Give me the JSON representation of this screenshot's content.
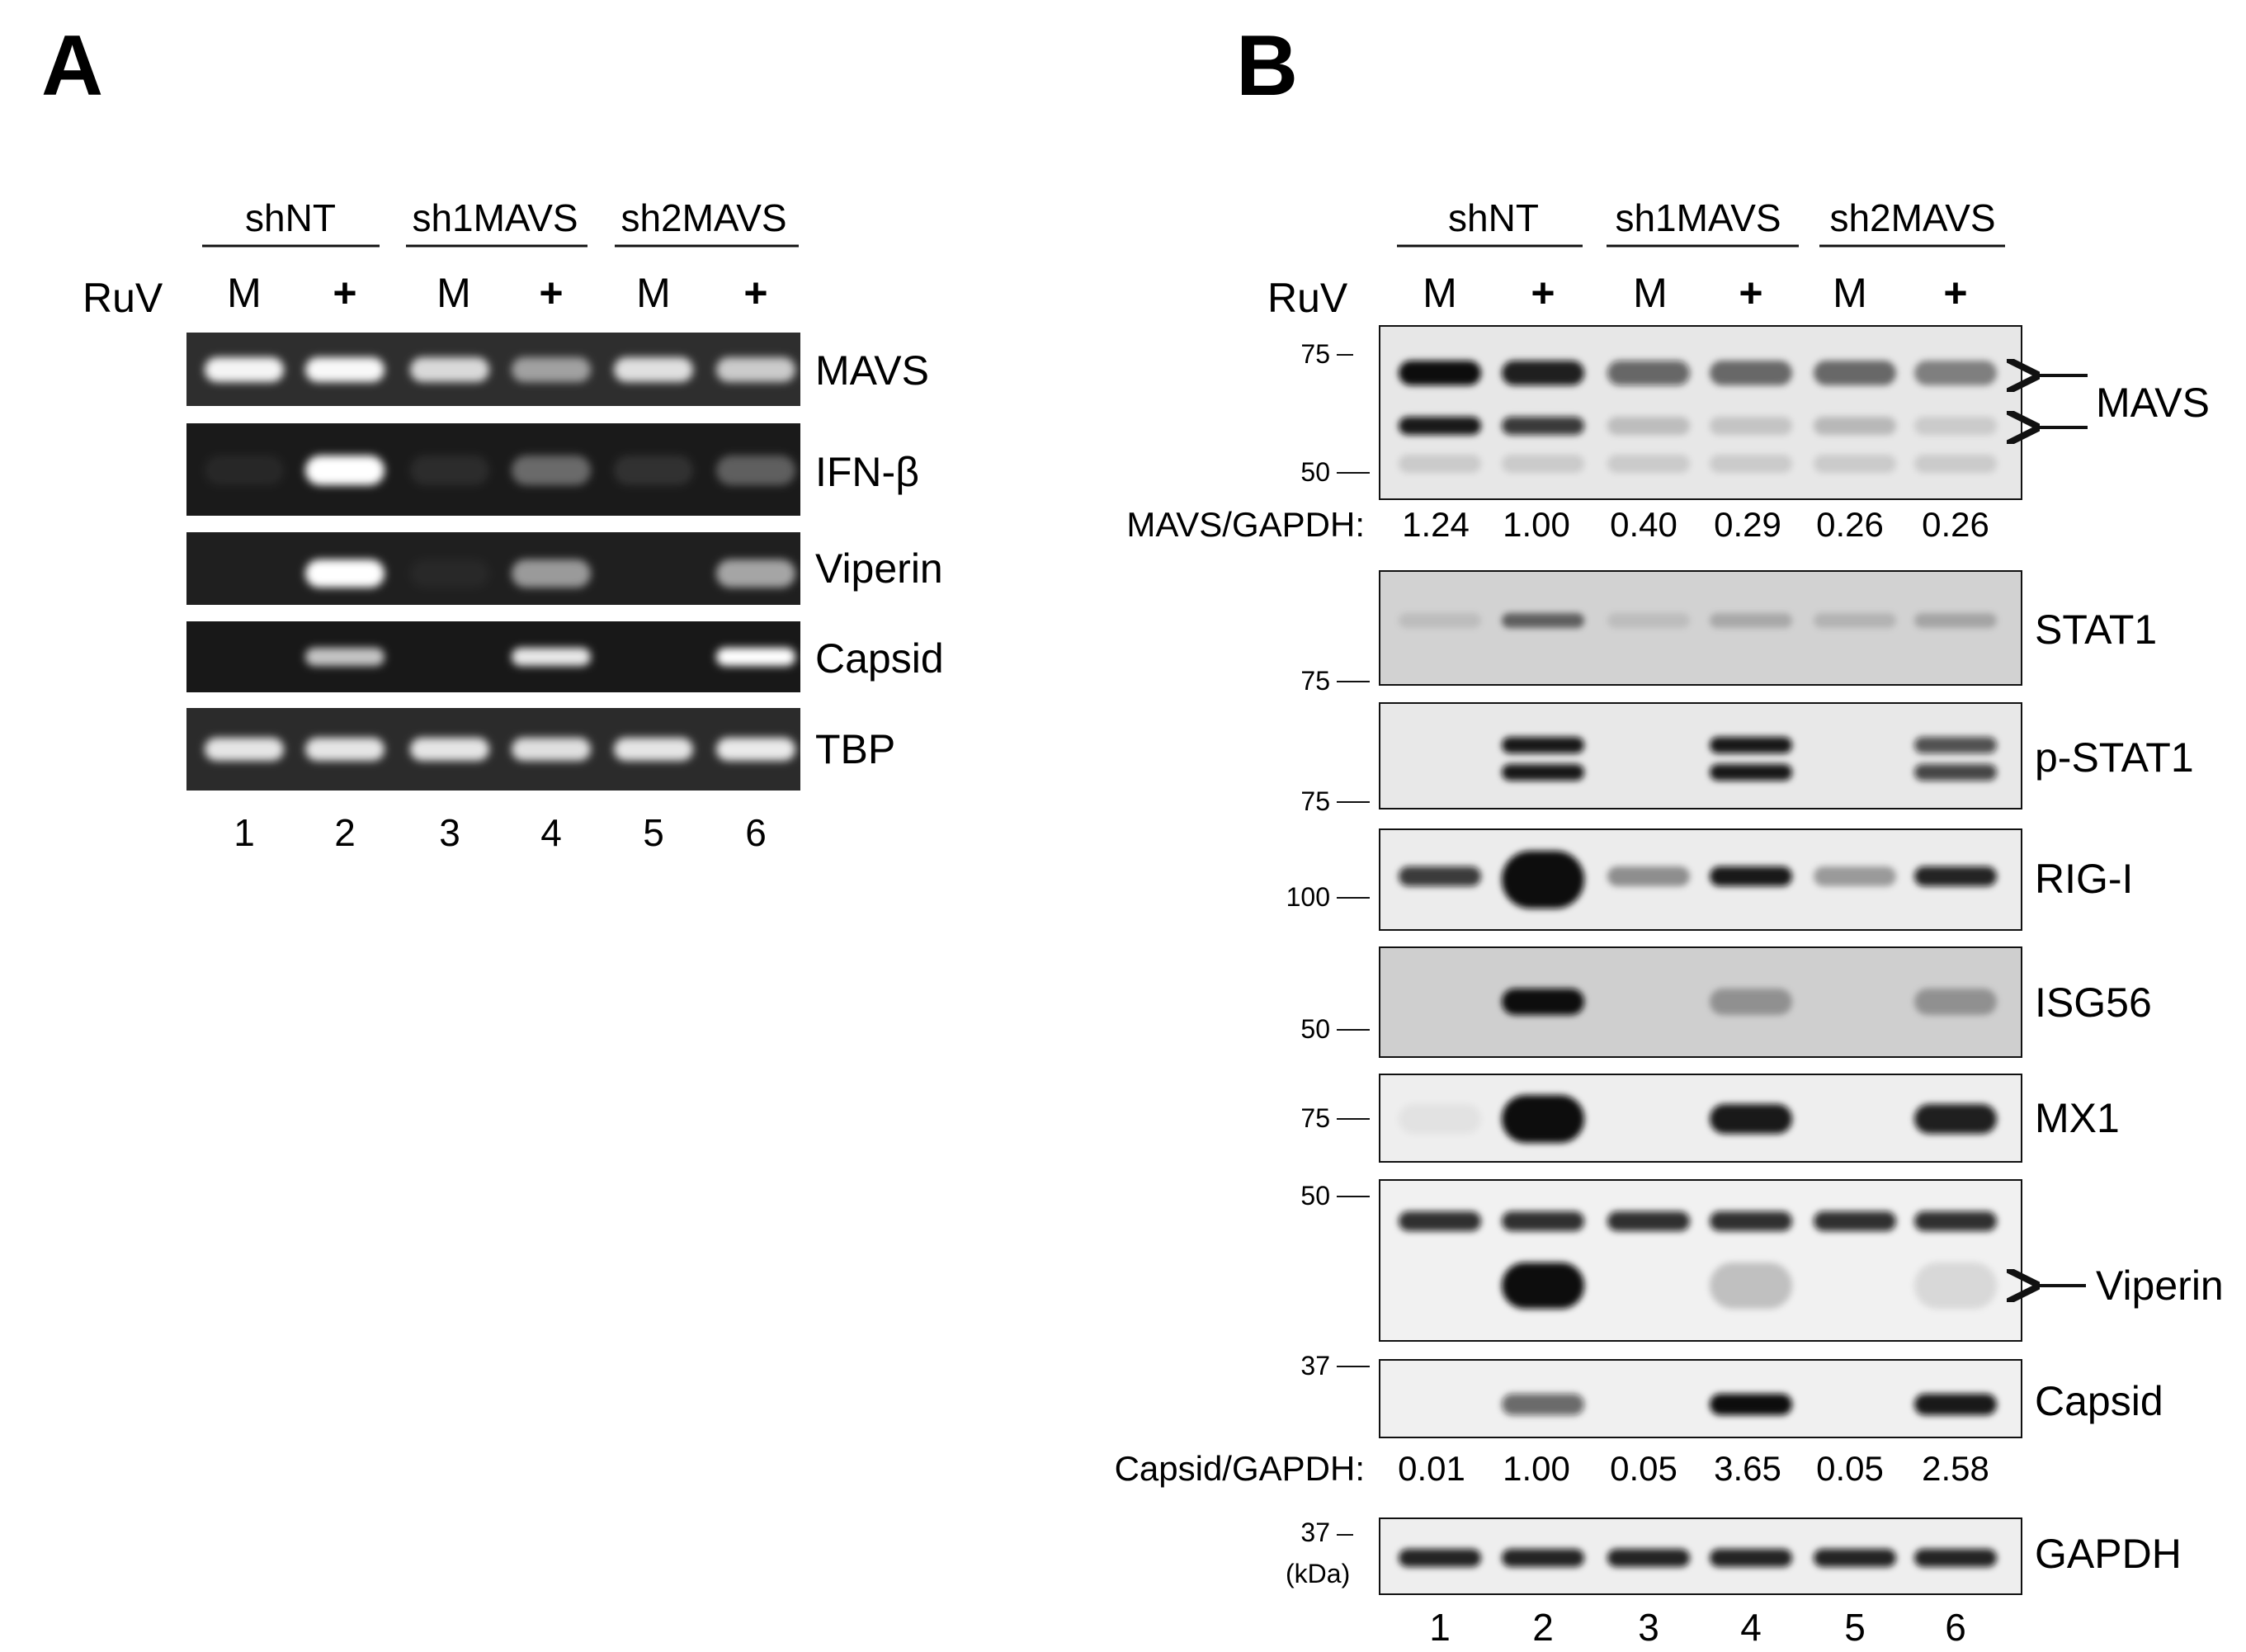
{
  "panel_a": {
    "letter": "A",
    "groups": [
      "shNT",
      "sh1MAVS",
      "sh2MAVS"
    ],
    "treatment_label": "RuV",
    "treatments": [
      "M",
      "+",
      "M",
      "+",
      "M",
      "+"
    ],
    "lanes": [
      "1",
      "2",
      "3",
      "4",
      "5",
      "6"
    ],
    "gels": [
      {
        "label": "MAVS",
        "bg": "#2e2e2e",
        "intensity": [
          0.95,
          0.97,
          0.82,
          0.55,
          0.85,
          0.75
        ]
      },
      {
        "label": "IFN-β",
        "bg": "#1a1a1a",
        "intensity": [
          0.06,
          1.0,
          0.08,
          0.35,
          0.1,
          0.3
        ]
      },
      {
        "label": "Viperin",
        "bg": "#1f1f1f",
        "intensity": [
          0.0,
          1.0,
          0.04,
          0.55,
          0.0,
          0.6
        ]
      },
      {
        "label": "Capsid",
        "bg": "#181818",
        "intensity": [
          0.0,
          0.75,
          0.0,
          0.9,
          0.0,
          1.0
        ]
      },
      {
        "label": "TBP",
        "bg": "#2b2b2b",
        "intensity": [
          0.88,
          0.88,
          0.88,
          0.85,
          0.88,
          0.9
        ]
      }
    ]
  },
  "panel_b": {
    "letter": "B",
    "groups": [
      "shNT",
      "sh1MAVS",
      "sh2MAVS"
    ],
    "treatment_label": "RuV",
    "treatments": [
      "M",
      "+",
      "M",
      "+",
      "M",
      "+"
    ],
    "lanes": [
      "1",
      "2",
      "3",
      "4",
      "5",
      "6"
    ],
    "mavs_label": "MAVS",
    "mavs_markers": [
      "75",
      "50"
    ],
    "mavs_quant_label": "MAVS/GAPDH:",
    "mavs_quant": [
      "1.24",
      "1.00",
      "0.40",
      "0.29",
      "0.26",
      "0.26"
    ],
    "stat1": {
      "label": "STAT1",
      "marker": "75"
    },
    "pstat1": {
      "label": "p-STAT1",
      "marker": "75"
    },
    "rigi": {
      "label": "RIG-I",
      "marker": "100"
    },
    "isg56": {
      "label": "ISG56",
      "marker": "50"
    },
    "mx1": {
      "label": "MX1",
      "marker": "75"
    },
    "viperin": {
      "label": "Viperin",
      "marker": "50"
    },
    "capsid": {
      "label": "Capsid",
      "marker": "37"
    },
    "capsid_quant_label": "Capsid/GAPDH:",
    "capsid_quant": [
      "0.01",
      "1.00",
      "0.05",
      "3.65",
      "0.05",
      "2.58"
    ],
    "gapdh": {
      "label": "GAPDH",
      "marker": "37",
      "unit": "(kDa)"
    }
  }
}
